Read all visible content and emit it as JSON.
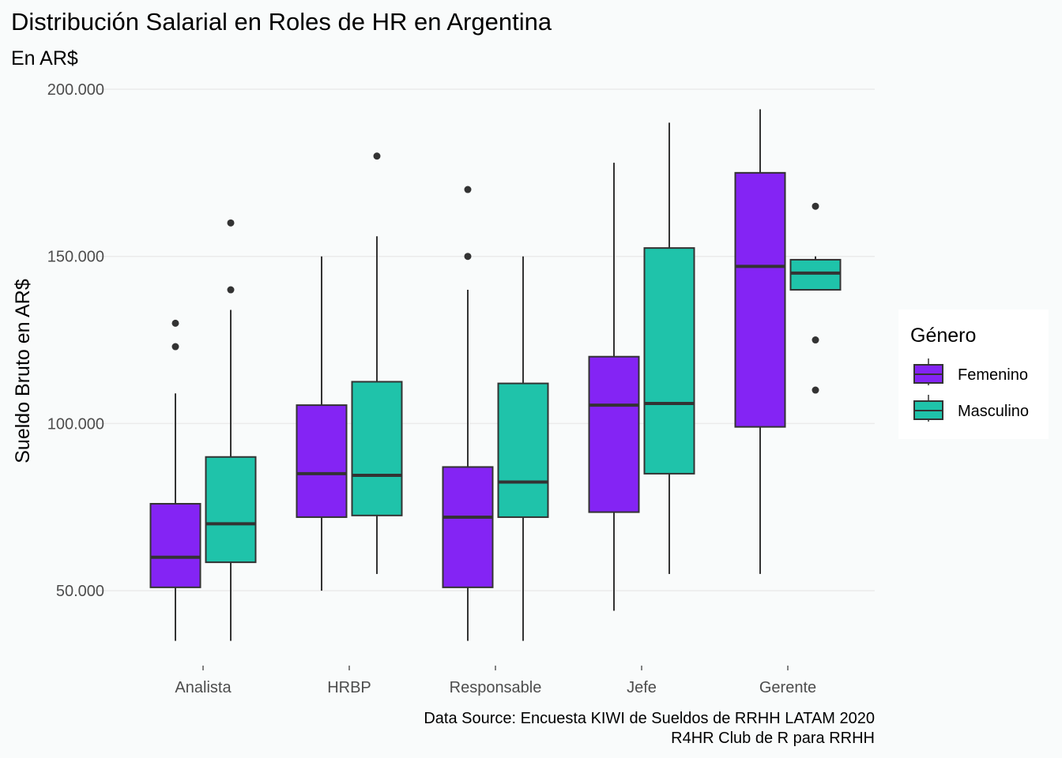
{
  "chart_data": {
    "type": "boxplot",
    "title": "Distribución Salarial en Roles de HR en Argentina",
    "subtitle": "En AR$",
    "xlabel": "",
    "ylabel": "Sueldo Bruto en AR$",
    "ylim": [
      28000,
      202000
    ],
    "yticks": [
      50000,
      100000,
      150000,
      200000
    ],
    "ytick_labels": [
      "50.000",
      "100.000",
      "150.000",
      "200.000"
    ],
    "grid": true,
    "categories": [
      "Analista",
      "HRBP",
      "Responsable",
      "Jefe",
      "Gerente"
    ],
    "legend": {
      "title": "Género",
      "position": "right",
      "entries": [
        "Femenino",
        "Masculino"
      ]
    },
    "colors": {
      "Femenino": "#8424f4",
      "Masculino": "#1fc3aa",
      "outline": "#333333",
      "grid": "#ebebeb"
    },
    "series": [
      {
        "name": "Femenino",
        "boxes": [
          {
            "category": "Analista",
            "whisker_low": 35000,
            "q1": 51000,
            "median": 60000,
            "q3": 76000,
            "whisker_high": 109000,
            "outliers": [
              123000,
              130000
            ]
          },
          {
            "category": "HRBP",
            "whisker_low": 50000,
            "q1": 72000,
            "median": 85000,
            "q3": 105500,
            "whisker_high": 150000,
            "outliers": []
          },
          {
            "category": "Responsable",
            "whisker_low": 35000,
            "q1": 51000,
            "median": 72000,
            "q3": 87000,
            "whisker_high": 140000,
            "outliers": [
              150000,
              170000
            ]
          },
          {
            "category": "Jefe",
            "whisker_low": 44000,
            "q1": 73500,
            "median": 105500,
            "q3": 120000,
            "whisker_high": 178000,
            "outliers": []
          },
          {
            "category": "Gerente",
            "whisker_low": 55000,
            "q1": 99000,
            "median": 147000,
            "q3": 175000,
            "whisker_high": 194000,
            "outliers": []
          }
        ]
      },
      {
        "name": "Masculino",
        "boxes": [
          {
            "category": "Analista",
            "whisker_low": 35000,
            "q1": 58500,
            "median": 70000,
            "q3": 90000,
            "whisker_high": 134000,
            "outliers": [
              140000,
              160000
            ]
          },
          {
            "category": "HRBP",
            "whisker_low": 55000,
            "q1": 72500,
            "median": 84500,
            "q3": 112500,
            "whisker_high": 156000,
            "outliers": [
              180000
            ]
          },
          {
            "category": "Responsable",
            "whisker_low": 35000,
            "q1": 72000,
            "median": 82500,
            "q3": 112000,
            "whisker_high": 150000,
            "outliers": []
          },
          {
            "category": "Jefe",
            "whisker_low": 55000,
            "q1": 85000,
            "median": 106000,
            "q3": 152500,
            "whisker_high": 190000,
            "outliers": []
          },
          {
            "category": "Gerente",
            "whisker_low": 140000,
            "q1": 140000,
            "median": 145000,
            "q3": 149000,
            "whisker_high": 150000,
            "outliers": [
              110000,
              125000,
              165000
            ]
          }
        ]
      }
    ],
    "caption": [
      "Data Source: Encuesta KIWI de Sueldos de RRHH LATAM 2020",
      "R4HR Club de R para RRHH"
    ]
  }
}
